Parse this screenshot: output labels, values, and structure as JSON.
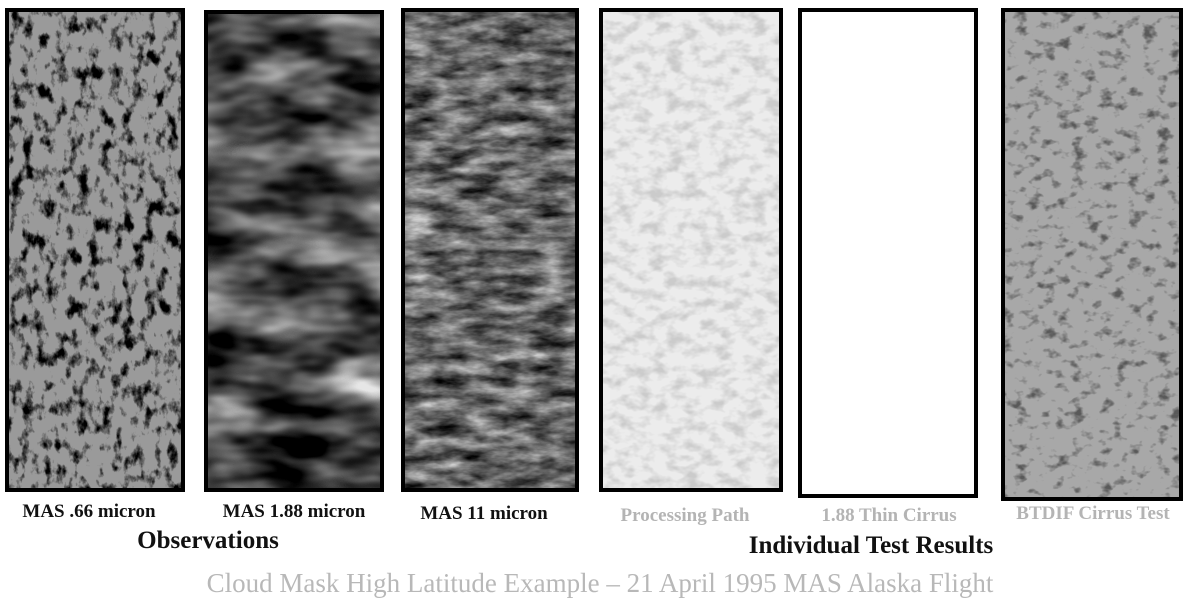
{
  "panels": [
    {
      "label": "MAS .66 micron"
    },
    {
      "label": "MAS 1.88 micron"
    },
    {
      "label": "MAS 11 micron"
    },
    {
      "label": "Processing Path"
    },
    {
      "label": "1.88 Thin Cirrus"
    },
    {
      "label": "BTDIF Cirrus Test"
    }
  ],
  "groups": [
    {
      "label": "Observations"
    },
    {
      "label": "Individual Test Results"
    }
  ],
  "caption": "Cloud Mask High Latitude Example  – 21 April 1995 MAS Alaska Flight"
}
